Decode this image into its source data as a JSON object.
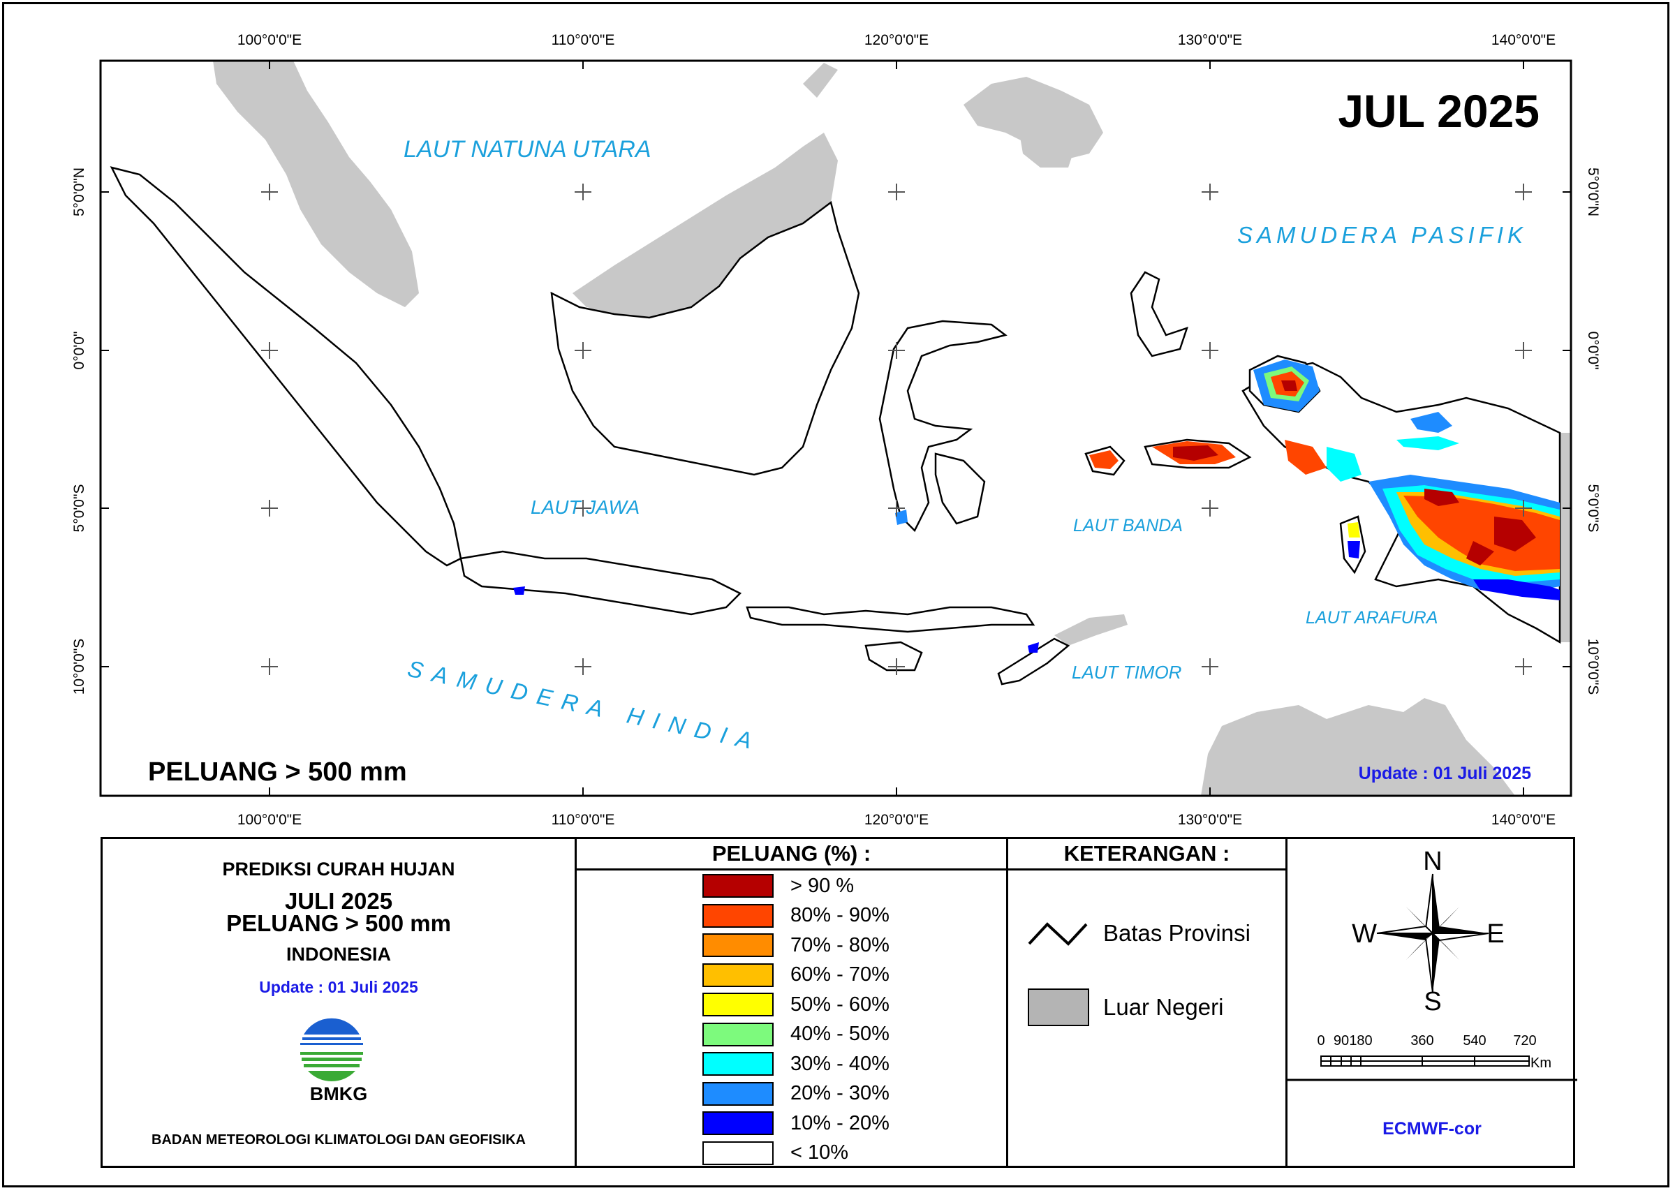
{
  "map": {
    "month_title": "JUL 2025",
    "bottom_left_label": "PELUANG > 500 mm",
    "update_text": "Update : 01 Juli  2025",
    "lon_ticks": [
      "100°0'0\"E",
      "110°0'0\"E",
      "120°0'0\"E",
      "130°0'0\"E",
      "140°0'0\"E"
    ],
    "lat_ticks": [
      "5°0'0\"N",
      "0°0'0\"",
      "5°0'0\"S",
      "10°0'0\"S"
    ],
    "sea_labels": {
      "natuna": "LAUT NATUNA UTARA",
      "pasifik": "SAMUDERA PASIFIK",
      "jawa": "LAUT JAWA",
      "banda": "LAUT BANDA",
      "arafura": "LAUT ARAFURA",
      "timor": "LAUT TIMOR",
      "hindia": "SAMUDERA HINDIA"
    },
    "colors": {
      "sea_label": "#1aa0dc",
      "foreign_land": "#c8c8c8",
      "update_text": "#1a1ae6"
    }
  },
  "info_panel": {
    "line1": "PREDIKSI CURAH HUJAN",
    "line2": "JULI 2025",
    "line3": "PELUANG > 500 mm",
    "line4": "INDONESIA",
    "update": "Update : 01 Juli  2025",
    "logo_text": "BMKG",
    "agency": "BADAN METEOROLOGI KLIMATOLOGI DAN GEOFISIKA"
  },
  "legend": {
    "title": "PELUANG (%) :",
    "items": [
      {
        "label": "> 90 %",
        "color": "#b50000"
      },
      {
        "label": "80% - 90%",
        "color": "#ff4500"
      },
      {
        "label": "70% - 80%",
        "color": "#ff8c00"
      },
      {
        "label": "60% - 70%",
        "color": "#ffbf00"
      },
      {
        "label": "50% - 60%",
        "color": "#ffff00"
      },
      {
        "label": "40% - 50%",
        "color": "#7dfa7d"
      },
      {
        "label": "30% - 40%",
        "color": "#00ffff"
      },
      {
        "label": "20% - 30%",
        "color": "#1e8cff"
      },
      {
        "label": "10% - 20%",
        "color": "#0000ff"
      },
      {
        "label": "< 10%",
        "color": "#ffffff"
      }
    ]
  },
  "keterangan": {
    "title": "KETERANGAN :",
    "batas": "Batas Provinsi",
    "luar": "Luar Negeri"
  },
  "compass": {
    "n": "N",
    "s": "S",
    "e": "E",
    "w": "W"
  },
  "scale_bar": {
    "ticks": [
      "0",
      "90",
      "180",
      "360",
      "540",
      "720"
    ],
    "unit": "Km"
  },
  "model_label": "ECMWF-cor"
}
